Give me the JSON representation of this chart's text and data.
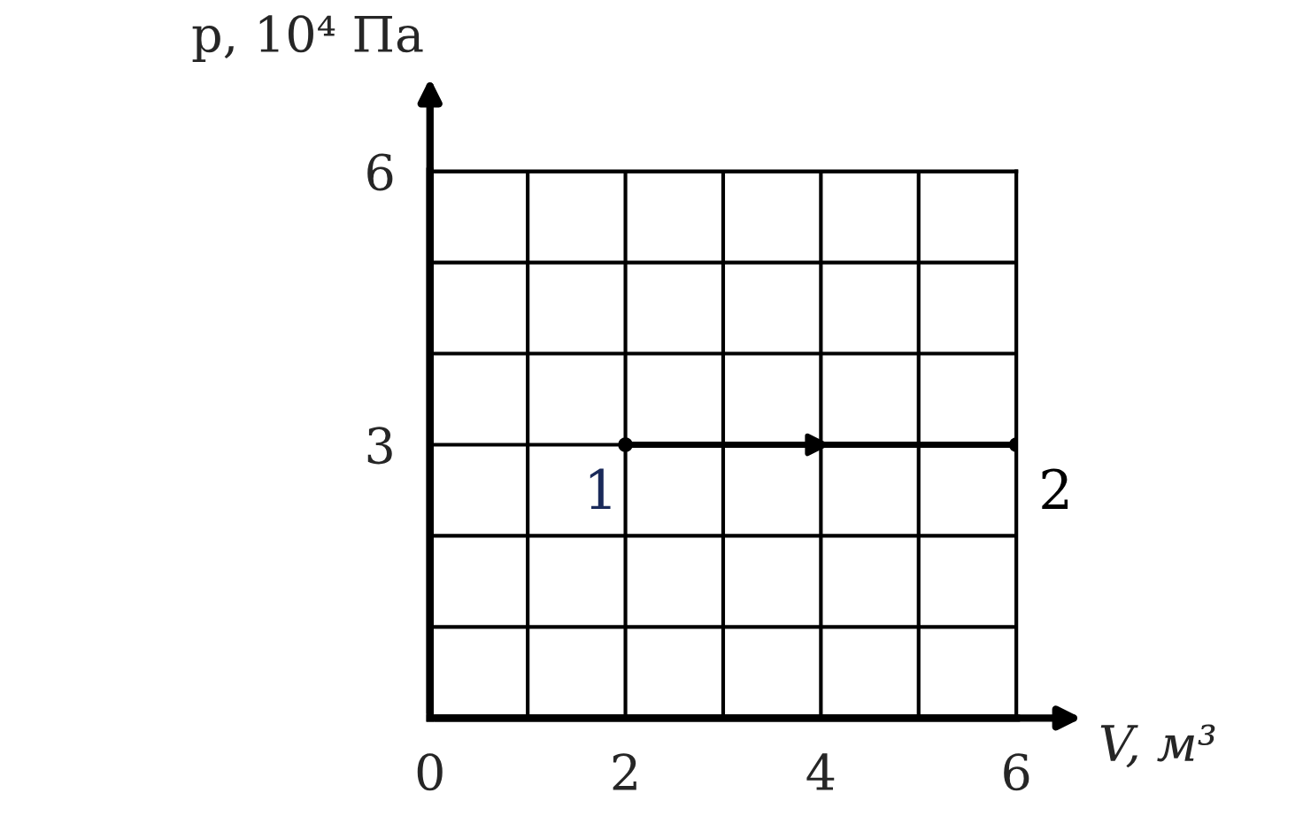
{
  "chart_data": {
    "type": "line",
    "xlabel": "V, м³",
    "ylabel": "p, 10⁴ Па",
    "x": [
      2,
      6
    ],
    "series": [
      {
        "color": "#000000",
        "values": [
          3,
          3
        ]
      }
    ],
    "marker": "circle",
    "line_style": "solid",
    "xlim": [
      0,
      6
    ],
    "ylim": [
      0,
      6
    ],
    "xticks": [
      0,
      {
        "value": 1,
        "label": null
      },
      2,
      {
        "value": 3,
        "label": null
      },
      4,
      {
        "value": 5,
        "label": null
      },
      6
    ],
    "yticks": [
      {
        "value": 0,
        "label": null
      },
      {
        "value": 1,
        "label": null
      },
      {
        "value": 2,
        "label": null
      },
      3,
      {
        "value": 4,
        "label": null
      },
      {
        "value": 5,
        "label": null
      },
      6
    ],
    "grid": true,
    "annotations": [
      {
        "text": "1",
        "x": 2,
        "y": 3
      },
      {
        "text": "2",
        "x": 6,
        "y": 3
      }
    ]
  }
}
